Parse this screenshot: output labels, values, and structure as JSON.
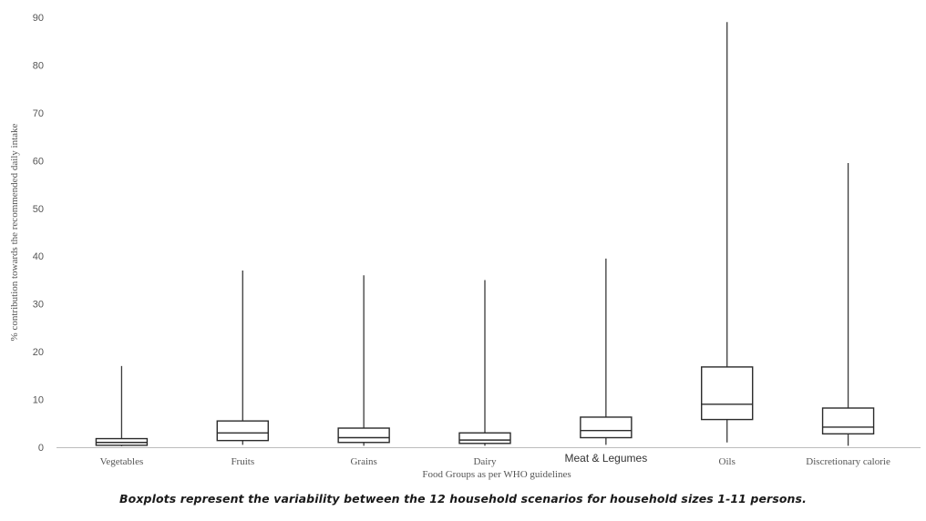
{
  "chart_data": {
    "type": "boxplot",
    "title": "",
    "xlabel": "Food Groups as per WHO guidelines",
    "ylabel": "% contribution towards the recommended daily intake",
    "ylim": [
      0,
      90
    ],
    "yticks": [
      0,
      10,
      20,
      30,
      40,
      50,
      60,
      70,
      80,
      90
    ],
    "grid": false,
    "legend": "none",
    "categories": [
      "Vegetables",
      "Fruits",
      "Grains",
      "Dairy",
      "Meat & Legumes",
      "Oils",
      "Discretionary calorie"
    ],
    "boxes": [
      {
        "category": "Vegetables",
        "min": 0.2,
        "q1": 0.4,
        "median": 1.0,
        "q3": 1.8,
        "max": 17
      },
      {
        "category": "Fruits",
        "min": 0.5,
        "q1": 1.4,
        "median": 3.0,
        "q3": 5.5,
        "max": 37
      },
      {
        "category": "Grains",
        "min": 0.3,
        "q1": 1.0,
        "median": 2.0,
        "q3": 4.0,
        "max": 36
      },
      {
        "category": "Dairy",
        "min": 0.3,
        "q1": 0.8,
        "median": 1.5,
        "q3": 3.0,
        "max": 35
      },
      {
        "category": "Meat & Legumes",
        "min": 0.5,
        "q1": 2.0,
        "median": 3.5,
        "q3": 6.3,
        "max": 39.5
      },
      {
        "category": "Oils",
        "min": 1.0,
        "q1": 5.8,
        "median": 9.0,
        "q3": 16.8,
        "max": 89
      },
      {
        "category": "Discretionary calorie",
        "min": 0.3,
        "q1": 2.8,
        "median": 4.2,
        "q3": 8.2,
        "max": 59.5
      }
    ]
  },
  "caption": "Boxplots represent the variability between the 12 household scenarios for household sizes 1-11 persons."
}
